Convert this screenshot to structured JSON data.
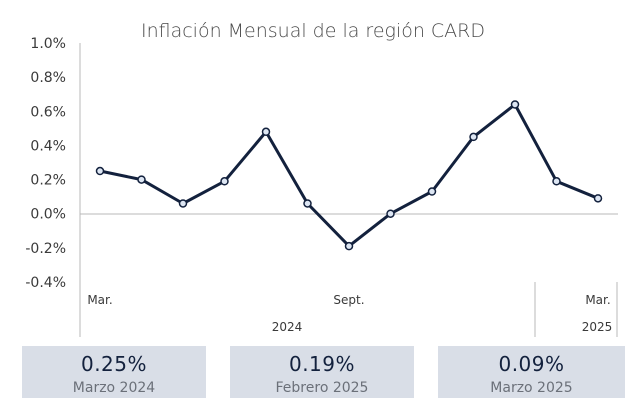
{
  "chart_data": {
    "type": "line",
    "title": "Inflación Mensual de la región CARD",
    "y_ticks": [
      "1.0%",
      "0.8%",
      "0.6%",
      "0.4%",
      "0.2%",
      "0.0%",
      "-0.2%",
      "-0.4%"
    ],
    "ylim": [
      -0.4,
      1.0
    ],
    "y_unit": "%",
    "x": [
      "2024-03",
      "2024-04",
      "2024-05",
      "2024-06",
      "2024-07",
      "2024-08",
      "2024-09",
      "2024-10",
      "2024-11",
      "2024-12",
      "2025-01",
      "2025-02",
      "2025-03"
    ],
    "values": [
      0.25,
      0.2,
      0.06,
      0.19,
      0.48,
      0.06,
      -0.19,
      0.0,
      0.13,
      0.45,
      0.64,
      0.19,
      0.09
    ],
    "x_tick_labels": [
      "Mar.",
      "Sept.",
      "Mar."
    ],
    "year_labels": [
      "2024",
      "2025"
    ],
    "grid": false,
    "line_color": "#13213d",
    "marker_fill": "#dde6f3"
  },
  "summary_cards": [
    {
      "value": "0.25%",
      "label": "Marzo 2024"
    },
    {
      "value": "0.19%",
      "label": "Febrero 2025"
    },
    {
      "value": "0.09%",
      "label": "Marzo 2025"
    }
  ]
}
